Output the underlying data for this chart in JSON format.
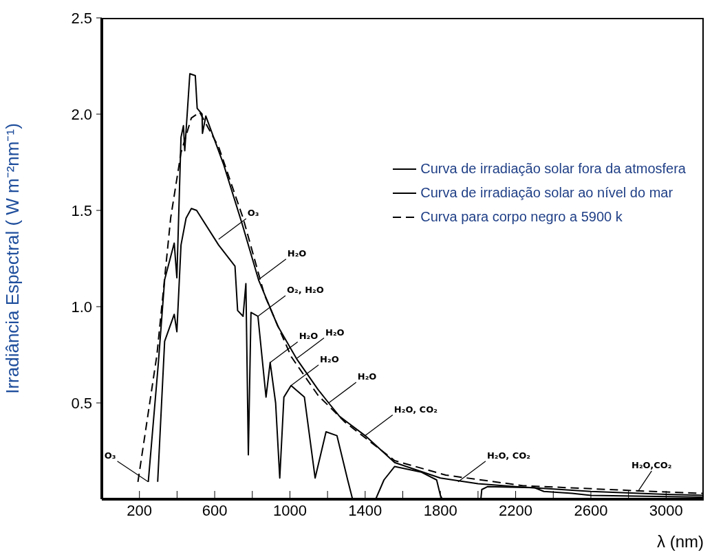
{
  "chart_data": {
    "type": "line",
    "ylabel": "Irradiância Espectral ( W m⁻²nm⁻¹)",
    "xlabel": "λ (nm)",
    "xlim": [
      0,
      3200
    ],
    "ylim": [
      0,
      2.5
    ],
    "xticks": [
      200,
      {
        "value": 400,
        "label": null
      },
      600,
      {
        "value": 800,
        "label": null
      },
      1000,
      {
        "value": 1200,
        "label": null
      },
      1400,
      {
        "value": 1600,
        "label": null
      },
      1800,
      {
        "value": 2000,
        "label": null
      },
      2200,
      {
        "value": 2400,
        "label": null
      },
      2600,
      {
        "value": 2800,
        "label": null
      },
      3000
    ],
    "yticks": [
      0.5,
      {
        "value": 1,
        "label": "1.0"
      },
      1.5,
      {
        "value": 2,
        "label": "2.0"
      },
      2.5
    ],
    "marker": "none",
    "legend": "top right",
    "grid": false,
    "series": [
      {
        "name": "Curva de irradiação solar fora da atmosfera",
        "color": "#000000",
        "line_style": "solid",
        "x": [
          247,
          300,
          334,
          385,
          399,
          421,
          434,
          441,
          468,
          497,
          507,
          533,
          535,
          553,
          647,
          746,
          833,
          935,
          1035,
          1149,
          1206,
          1264,
          1400,
          1557,
          1800,
          2000,
          2200,
          2600,
          3000,
          3200
        ],
        "values": [
          0.09,
          0.7,
          1.14,
          1.33,
          1.15,
          1.88,
          1.94,
          1.81,
          2.21,
          2.2,
          2.03,
          2.0,
          1.9,
          1.99,
          1.74,
          1.43,
          1.14,
          0.9,
          0.73,
          0.57,
          0.5,
          0.43,
          0.33,
          0.19,
          0.11,
          0.08,
          0.065,
          0.04,
          0.025,
          0.02
        ]
      },
      {
        "name": "Curva de irradiação solar ao nível do mar",
        "color": "#000000",
        "line_style": "solid",
        "x": [
          297,
          334,
          385,
          399,
          421,
          448,
          476,
          504,
          621,
          708,
          722,
          751,
          766,
          779,
          793,
          830,
          873,
          895,
          924,
          946,
          968,
          1006,
          1077,
          1134,
          1192,
          1250,
          1307,
          1333,
          1456,
          1500,
          1557,
          1700,
          1780,
          1800,
          1810,
          2015,
          2020,
          2050,
          2300,
          2350,
          2500,
          2600,
          3200
        ],
        "values": [
          0.09,
          0.82,
          0.96,
          0.87,
          1.32,
          1.46,
          1.51,
          1.5,
          1.32,
          1.21,
          0.98,
          0.95,
          1.12,
          0.23,
          0.97,
          0.95,
          0.53,
          0.71,
          0.5,
          0.11,
          0.53,
          0.59,
          0.53,
          0.11,
          0.35,
          0.33,
          0.1,
          0,
          0,
          0.1,
          0.17,
          0.14,
          0.1,
          0.02,
          0,
          0,
          0.05,
          0.065,
          0.06,
          0.04,
          0.03,
          0.02,
          0.01
        ]
      },
      {
        "name": "Curva para corpo negro a 5900 k",
        "color": "#000000",
        "line_style": "dashed",
        "x": [
          192,
          293,
          366,
          421,
          476,
          520,
          621,
          751,
          865,
          1007,
          1149,
          1293,
          1557,
          1829,
          2241,
          2860,
          3200
        ],
        "values": [
          0.09,
          0.75,
          1.46,
          1.8,
          1.98,
          2.01,
          1.83,
          1.46,
          1.06,
          0.74,
          0.54,
          0.4,
          0.2,
          0.125,
          0.07,
          0.043,
          0.03
        ]
      }
    ],
    "annotations": [
      {
        "text": "O₃",
        "x": 247,
        "y": 0.09
      },
      {
        "text": "O₃",
        "x": 621,
        "y": 1.35
      },
      {
        "text": "H₂O",
        "x": 833,
        "y": 1.14
      },
      {
        "text": "O₂, H₂O",
        "x": 830,
        "y": 0.95
      },
      {
        "text": "H₂O",
        "x": 895,
        "y": 0.71
      },
      {
        "text": "H₂O",
        "x": 1035,
        "y": 0.73
      },
      {
        "text": "H₂O",
        "x": 1006,
        "y": 0.59
      },
      {
        "text": "H₂O",
        "x": 1206,
        "y": 0.5
      },
      {
        "text": "H₂O, CO₂",
        "x": 1400,
        "y": 0.33
      },
      {
        "text": "H₂O, CO₂",
        "x": 1894,
        "y": 0.09
      },
      {
        "text": "H₂O,CO₂",
        "x": 2850,
        "y": 0.04
      }
    ]
  }
}
